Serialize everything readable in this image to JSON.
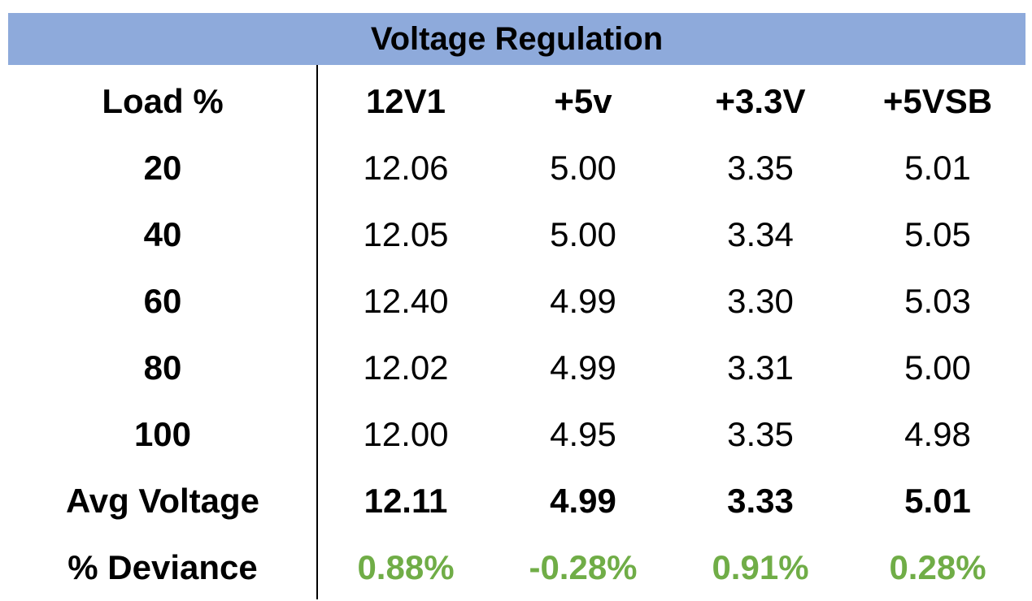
{
  "chart_data": {
    "type": "table",
    "title": "Voltage Regulation",
    "columns": [
      "Load %",
      "12V1",
      "+5v",
      "+3.3V",
      "+5VSB"
    ],
    "rows": [
      [
        "20",
        "12.06",
        "5.00",
        "3.35",
        "5.01"
      ],
      [
        "40",
        "12.05",
        "5.00",
        "3.34",
        "5.05"
      ],
      [
        "60",
        "12.40",
        "4.99",
        "3.30",
        "5.03"
      ],
      [
        "80",
        "12.02",
        "4.99",
        "3.31",
        "5.00"
      ],
      [
        "100",
        "12.00",
        "4.95",
        "3.35",
        "4.98"
      ]
    ],
    "avg_row": [
      "Avg Voltage",
      "12.11",
      "4.99",
      "3.33",
      "5.01"
    ],
    "deviance_row": [
      "% Deviance",
      "0.88%",
      "-0.28%",
      "0.91%",
      "0.28%"
    ]
  },
  "colors": {
    "title_bg": "#8eaadb",
    "deviance_text": "#70ad47",
    "text": "#000000"
  }
}
